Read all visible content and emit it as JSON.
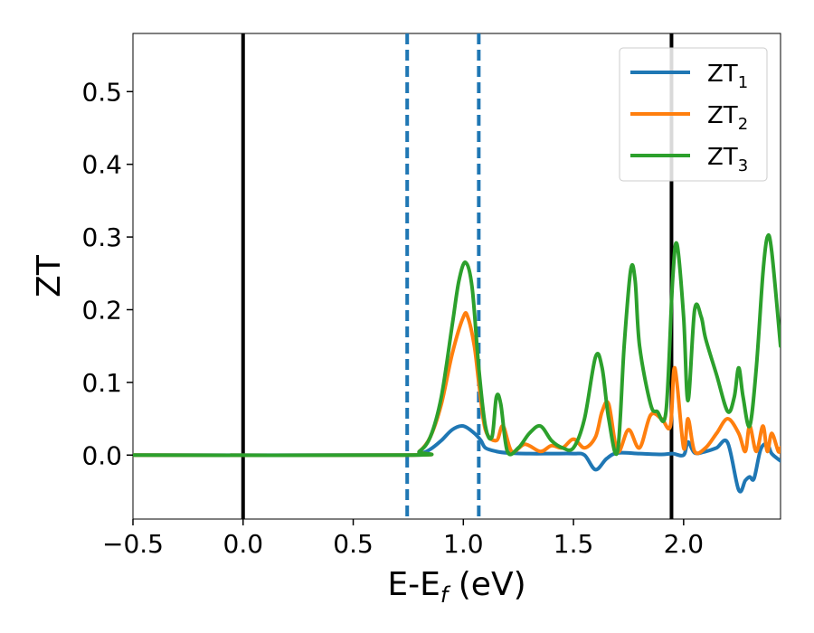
{
  "chart_data": {
    "type": "line",
    "title": "",
    "xlabel_main": "E-E",
    "xlabel_sub": "f",
    "xlabel_unit": " (eV)",
    "ylabel": "ZT",
    "xlim": [
      -0.5,
      2.44
    ],
    "ylim": [
      -0.088,
      0.58
    ],
    "xticks": [
      -0.5,
      0.0,
      0.5,
      1.0,
      1.5,
      2.0
    ],
    "xtick_labels": [
      "−0.5",
      "0.0",
      "0.5",
      "1.0",
      "1.5",
      "2.0"
    ],
    "yticks": [
      0.0,
      0.1,
      0.2,
      0.3,
      0.4,
      0.5
    ],
    "ytick_labels": [
      "0.0",
      "0.1",
      "0.2",
      "0.3",
      "0.4",
      "0.5"
    ],
    "grid": false,
    "legend_position": "upper-right",
    "vlines": [
      {
        "x": 0.0,
        "style": "solid",
        "color": "#000000"
      },
      {
        "x": 0.745,
        "style": "dashed",
        "color": "#1f77b4"
      },
      {
        "x": 1.07,
        "style": "dashed",
        "color": "#1f77b4"
      },
      {
        "x": 1.945,
        "style": "solid",
        "color": "#000000"
      }
    ],
    "series": [
      {
        "name": "ZT",
        "subscript": "1",
        "color": "#1f77b4",
        "x": [
          -0.5,
          0.7,
          0.8,
          0.85,
          0.9,
          0.95,
          1.0,
          1.05,
          1.08,
          1.1,
          1.15,
          1.2,
          1.3,
          1.4,
          1.5,
          1.55,
          1.6,
          1.65,
          1.7,
          1.8,
          1.9,
          1.95,
          2.0,
          2.02,
          2.05,
          2.1,
          2.15,
          2.2,
          2.25,
          2.28,
          2.3,
          2.32,
          2.35,
          2.38,
          2.4,
          2.44
        ],
        "y": [
          0.0,
          0.0,
          0.002,
          0.008,
          0.02,
          0.035,
          0.04,
          0.03,
          0.02,
          0.01,
          0.005,
          0.003,
          0.002,
          0.002,
          0.002,
          0.0,
          -0.02,
          -0.005,
          0.003,
          0.002,
          0.001,
          0.002,
          0.0,
          0.018,
          0.003,
          0.005,
          0.01,
          0.017,
          -0.048,
          -0.035,
          -0.03,
          -0.032,
          0.008,
          0.015,
          0.002,
          -0.008
        ]
      },
      {
        "name": "ZT",
        "subscript": "2",
        "color": "#ff7f0e",
        "x": [
          -0.5,
          0.75,
          0.8,
          0.85,
          0.9,
          0.95,
          1.0,
          1.02,
          1.05,
          1.07,
          1.1,
          1.15,
          1.18,
          1.22,
          1.28,
          1.35,
          1.4,
          1.45,
          1.5,
          1.55,
          1.6,
          1.63,
          1.66,
          1.7,
          1.75,
          1.8,
          1.85,
          1.9,
          1.94,
          1.96,
          2.0,
          2.02,
          2.05,
          2.1,
          2.15,
          2.2,
          2.25,
          2.28,
          2.3,
          2.33,
          2.36,
          2.38,
          2.4,
          2.43,
          2.44
        ],
        "y": [
          0.0,
          0.0,
          0.005,
          0.025,
          0.07,
          0.14,
          0.19,
          0.19,
          0.15,
          0.1,
          0.035,
          0.02,
          0.04,
          0.005,
          0.015,
          0.005,
          0.013,
          0.01,
          0.022,
          0.01,
          0.025,
          0.06,
          0.07,
          0.005,
          0.035,
          0.01,
          0.055,
          0.05,
          0.04,
          0.12,
          0.01,
          0.05,
          0.005,
          0.01,
          0.03,
          0.05,
          0.03,
          0.005,
          0.04,
          0.005,
          0.04,
          0.005,
          0.03,
          0.005,
          0.01
        ]
      },
      {
        "name": "ZT",
        "subscript": "3",
        "color": "#2ca02c",
        "x": [
          -0.5,
          0.75,
          0.8,
          0.85,
          0.9,
          0.95,
          0.98,
          1.01,
          1.04,
          1.07,
          1.1,
          1.13,
          1.15,
          1.17,
          1.2,
          1.25,
          1.3,
          1.35,
          1.4,
          1.45,
          1.5,
          1.55,
          1.6,
          1.63,
          1.66,
          1.7,
          1.73,
          1.76,
          1.78,
          1.8,
          1.85,
          1.88,
          1.92,
          1.95,
          1.97,
          2.0,
          2.02,
          2.05,
          2.08,
          2.1,
          2.15,
          2.2,
          2.23,
          2.25,
          2.27,
          2.3,
          2.33,
          2.36,
          2.38,
          2.4,
          2.44
        ],
        "y": [
          0.0,
          0.0,
          0.005,
          0.025,
          0.08,
          0.18,
          0.24,
          0.265,
          0.23,
          0.12,
          0.04,
          0.025,
          0.08,
          0.07,
          0.005,
          0.01,
          0.03,
          0.04,
          0.02,
          0.01,
          0.01,
          0.05,
          0.135,
          0.12,
          0.05,
          0.005,
          0.15,
          0.255,
          0.24,
          0.15,
          0.07,
          0.06,
          0.06,
          0.24,
          0.29,
          0.19,
          0.075,
          0.2,
          0.19,
          0.16,
          0.11,
          0.06,
          0.08,
          0.12,
          0.08,
          0.04,
          0.12,
          0.25,
          0.3,
          0.28,
          0.15
        ]
      }
    ]
  }
}
